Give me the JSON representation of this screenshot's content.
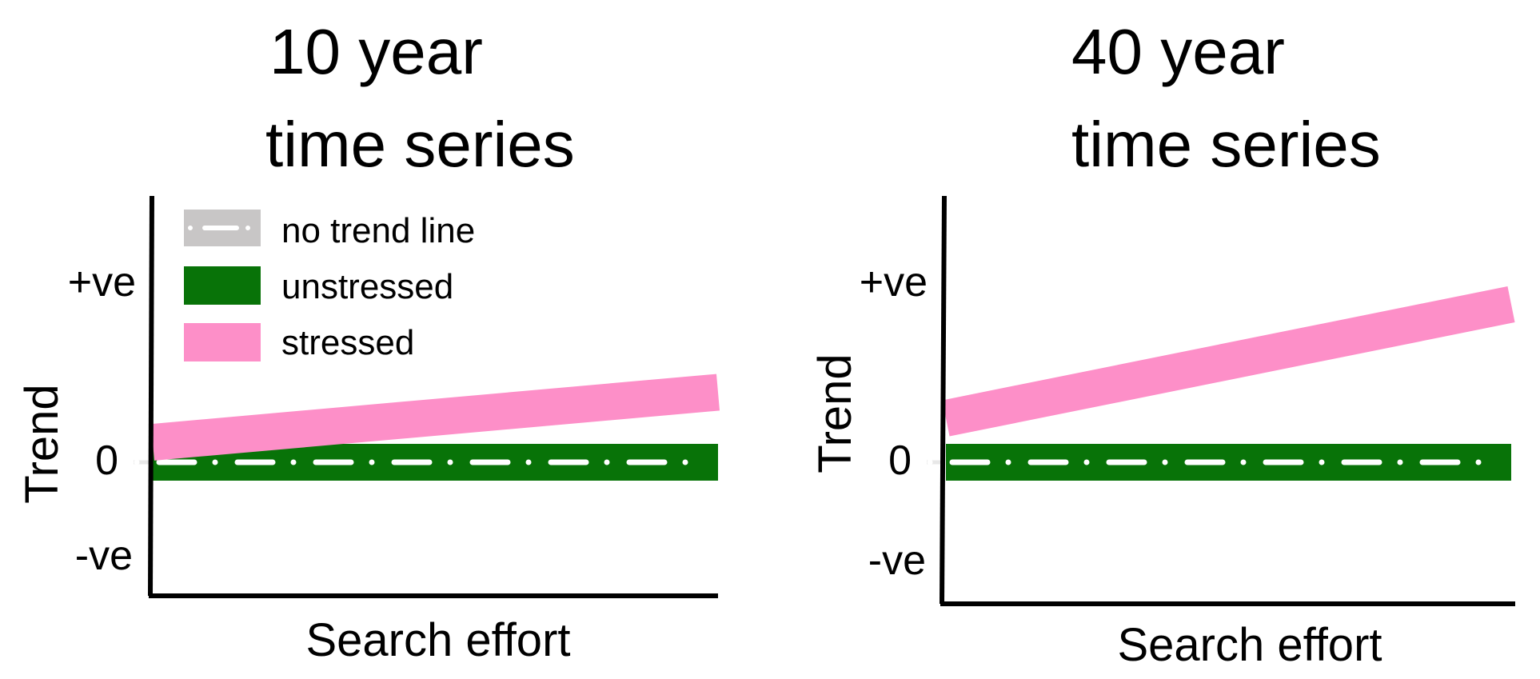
{
  "chart_data": [
    {
      "type": "line",
      "title_lines": [
        "10 year",
        "time series"
      ],
      "xlabel": "Search effort",
      "ylabel": "Trend",
      "x": [
        0,
        1
      ],
      "ylim": [
        -1,
        1
      ],
      "yticks": [
        {
          "value": 0.6,
          "label": "+ve"
        },
        {
          "value": 0,
          "label": "0"
        },
        {
          "value": -0.6,
          "label": "-ve"
        }
      ],
      "series": [
        {
          "name": "no trend line",
          "color": "#c8c6c6",
          "style": "dash-dot",
          "values": [
            0,
            0
          ]
        },
        {
          "name": "unstressed",
          "color": "#087308",
          "values": [
            0,
            0
          ]
        },
        {
          "name": "stressed",
          "color": "#fd8fc8",
          "values": [
            0.1,
            0.35
          ]
        }
      ],
      "legend": "top-left"
    },
    {
      "type": "line",
      "title_lines": [
        "40 year",
        "time series"
      ],
      "xlabel": "Search effort",
      "ylabel": "Trend",
      "x": [
        0,
        1
      ],
      "ylim": [
        -1,
        1
      ],
      "yticks": [
        {
          "value": 0.6,
          "label": "+ve"
        },
        {
          "value": 0,
          "label": "0"
        },
        {
          "value": -0.6,
          "label": "-ve"
        }
      ],
      "series": [
        {
          "name": "no trend line",
          "color": "#c8c6c6",
          "style": "dash-dot",
          "values": [
            0,
            0
          ]
        },
        {
          "name": "unstressed",
          "color": "#087308",
          "values": [
            0,
            0
          ]
        },
        {
          "name": "stressed",
          "color": "#fd8fc8",
          "values": [
            0.22,
            0.79
          ]
        }
      ]
    }
  ]
}
